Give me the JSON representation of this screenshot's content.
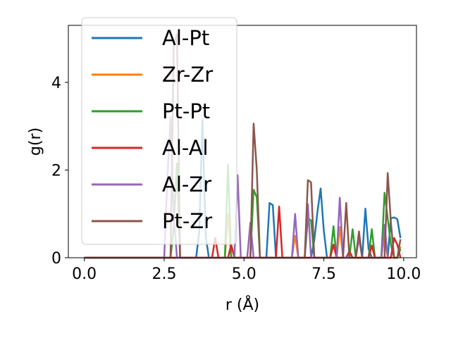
{
  "chart_data": {
    "type": "line",
    "title": "",
    "xlabel": "r (Å)",
    "ylabel": "g(r)",
    "xlim": [
      -0.5,
      10.4
    ],
    "ylim": [
      0,
      5.3
    ],
    "xticks": [
      0.0,
      2.5,
      5.0,
      7.5,
      10.0
    ],
    "xtick_labels": [
      "0.0",
      "2.5",
      "5.0",
      "7.5",
      "10.0"
    ],
    "yticks": [
      0,
      2,
      4
    ],
    "ytick_labels": [
      "0",
      "2",
      "4"
    ],
    "grid": false,
    "legend_position": "upper-left",
    "series": [
      {
        "name": "Al-Pt",
        "color": "#1f77b4",
        "points": [
          [
            0,
            0
          ],
          [
            3.5,
            0
          ],
          [
            3.6,
            0.6
          ],
          [
            3.7,
            3.15
          ],
          [
            3.8,
            0.5
          ],
          [
            3.9,
            0
          ],
          [
            5.7,
            0
          ],
          [
            5.8,
            1.25
          ],
          [
            5.9,
            1.2
          ],
          [
            6.0,
            0
          ],
          [
            7.1,
            0
          ],
          [
            7.2,
            0.4
          ],
          [
            7.3,
            1.05
          ],
          [
            7.4,
            1.58
          ],
          [
            7.5,
            0.6
          ],
          [
            7.6,
            0
          ],
          [
            8.7,
            0
          ],
          [
            8.8,
            1.12
          ],
          [
            8.9,
            0.2
          ],
          [
            9.0,
            0
          ],
          [
            9.5,
            0
          ],
          [
            9.6,
            0.9
          ],
          [
            9.7,
            0.92
          ],
          [
            9.8,
            0.88
          ],
          [
            9.9,
            0.45
          ]
        ]
      },
      {
        "name": "Zr-Zr",
        "color": "#ff7f0e",
        "points": [
          [
            0,
            0
          ],
          [
            4.4,
            0
          ],
          [
            4.5,
            1.0
          ],
          [
            4.6,
            0
          ],
          [
            6.5,
            0
          ],
          [
            6.6,
            0.5
          ],
          [
            6.7,
            0
          ],
          [
            7.9,
            0
          ],
          [
            8.0,
            0.7
          ],
          [
            8.1,
            0
          ],
          [
            9.3,
            0
          ],
          [
            9.4,
            0.5
          ],
          [
            9.5,
            0
          ],
          [
            9.8,
            0
          ],
          [
            9.9,
            0.25
          ]
        ]
      },
      {
        "name": "Pt-Pt",
        "color": "#2ca02c",
        "points": [
          [
            0,
            0
          ],
          [
            2.7,
            0
          ],
          [
            2.8,
            0.7
          ],
          [
            2.9,
            2.15
          ],
          [
            3.0,
            0
          ],
          [
            4.4,
            0
          ],
          [
            4.5,
            2.12
          ],
          [
            4.6,
            0
          ],
          [
            5.2,
            0
          ],
          [
            5.3,
            1.55
          ],
          [
            5.4,
            1.38
          ],
          [
            5.5,
            0
          ],
          [
            6.9,
            0
          ],
          [
            7.0,
            0.9
          ],
          [
            7.1,
            0.85
          ],
          [
            7.2,
            0
          ],
          [
            7.7,
            0
          ],
          [
            7.8,
            0.72
          ],
          [
            7.9,
            0
          ],
          [
            8.3,
            0
          ],
          [
            8.4,
            0.65
          ],
          [
            8.5,
            0
          ],
          [
            8.9,
            0
          ],
          [
            9.0,
            0.65
          ],
          [
            9.1,
            0
          ],
          [
            9.3,
            0
          ],
          [
            9.4,
            1.48
          ],
          [
            9.5,
            0.9
          ],
          [
            9.6,
            0.3
          ],
          [
            9.7,
            0
          ],
          [
            9.8,
            0
          ],
          [
            9.9,
            0.2
          ]
        ]
      },
      {
        "name": "Al-Al",
        "color": "#d62728",
        "points": [
          [
            0,
            0
          ],
          [
            4.0,
            0
          ],
          [
            4.1,
            0.45
          ],
          [
            4.2,
            0
          ],
          [
            4.5,
            0
          ],
          [
            4.6,
            0.3
          ],
          [
            4.7,
            0
          ],
          [
            6.0,
            0
          ],
          [
            6.1,
            1.17
          ],
          [
            6.2,
            0
          ],
          [
            7.7,
            0
          ],
          [
            7.8,
            0.3
          ],
          [
            7.9,
            0
          ],
          [
            8.2,
            0
          ],
          [
            8.3,
            0.15
          ],
          [
            8.4,
            0
          ],
          [
            8.9,
            0
          ],
          [
            9.0,
            0.28
          ],
          [
            9.1,
            0
          ],
          [
            9.6,
            0
          ],
          [
            9.7,
            0.45
          ],
          [
            9.8,
            0.3
          ],
          [
            9.9,
            0
          ]
        ]
      },
      {
        "name": "Al-Zr",
        "color": "#9467bd",
        "points": [
          [
            0,
            0
          ],
          [
            2.5,
            0
          ],
          [
            2.6,
            1.8
          ],
          [
            2.7,
            3.2
          ],
          [
            2.8,
            1.0
          ],
          [
            2.9,
            0
          ],
          [
            4.7,
            0
          ],
          [
            4.8,
            1.88
          ],
          [
            4.9,
            0
          ],
          [
            5.1,
            0
          ],
          [
            5.2,
            0.8
          ],
          [
            5.3,
            0
          ],
          [
            6.5,
            0
          ],
          [
            6.6,
            1.0
          ],
          [
            6.7,
            0
          ],
          [
            6.9,
            0
          ],
          [
            7.0,
            1.22
          ],
          [
            7.1,
            0
          ],
          [
            7.9,
            0
          ],
          [
            8.0,
            1.37
          ],
          [
            8.1,
            0
          ],
          [
            8.5,
            0
          ],
          [
            8.6,
            0.45
          ],
          [
            8.7,
            0
          ],
          [
            9.3,
            0
          ],
          [
            9.4,
            0.75
          ],
          [
            9.5,
            0
          ]
        ]
      },
      {
        "name": "Pt-Zr",
        "color": "#8c564b",
        "points": [
          [
            0,
            0
          ],
          [
            2.7,
            0
          ],
          [
            2.8,
            4.85
          ],
          [
            2.9,
            5.1
          ],
          [
            3.0,
            0
          ],
          [
            5.2,
            0
          ],
          [
            5.3,
            3.06
          ],
          [
            5.4,
            2.0
          ],
          [
            5.5,
            0
          ],
          [
            6.9,
            0
          ],
          [
            7.0,
            1.77
          ],
          [
            7.1,
            1.72
          ],
          [
            7.2,
            0
          ],
          [
            8.1,
            0
          ],
          [
            8.2,
            1.25
          ],
          [
            8.3,
            0
          ],
          [
            8.5,
            0
          ],
          [
            8.6,
            0.6
          ],
          [
            8.7,
            0
          ],
          [
            9.4,
            0
          ],
          [
            9.5,
            1.93
          ],
          [
            9.6,
            0.8
          ],
          [
            9.7,
            0
          ],
          [
            9.8,
            0
          ],
          [
            9.9,
            0.42
          ]
        ]
      }
    ]
  }
}
